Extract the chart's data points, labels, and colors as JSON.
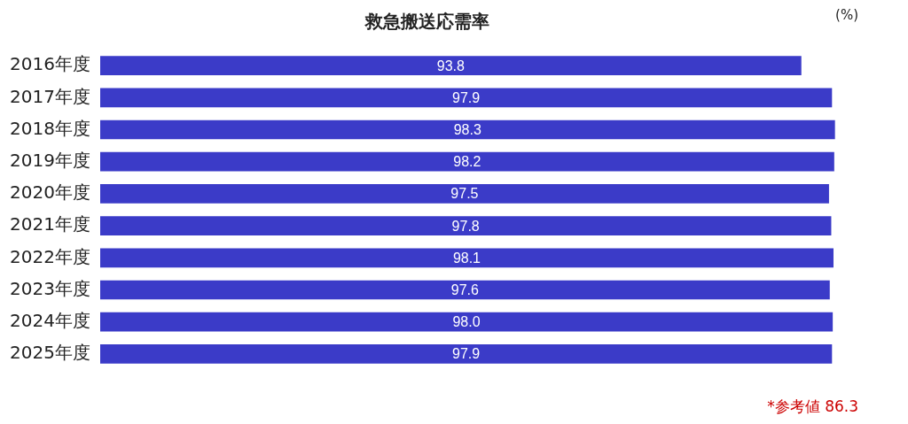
{
  "chart_data": {
    "type": "bar",
    "orientation": "horizontal",
    "title": "救急搬送応需率",
    "categories": [
      "2016年度",
      "2017年度",
      "2018年度",
      "2019年度",
      "2020年度",
      "2021年度",
      "2022年度",
      "2023年度",
      "2024年度",
      "2025年度"
    ],
    "values": [
      93.8,
      97.9,
      98.3,
      98.2,
      97.5,
      97.8,
      98.1,
      97.6,
      98.0,
      97.9
    ],
    "value_labels": [
      "93.8",
      "97.9",
      "98.3",
      "98.2",
      "97.5",
      "97.8",
      "98.1",
      "97.6",
      "98.0",
      "97.9"
    ],
    "color": "#3b3bc8",
    "annotations": [
      "(%)",
      "*参考値 86.3"
    ]
  }
}
